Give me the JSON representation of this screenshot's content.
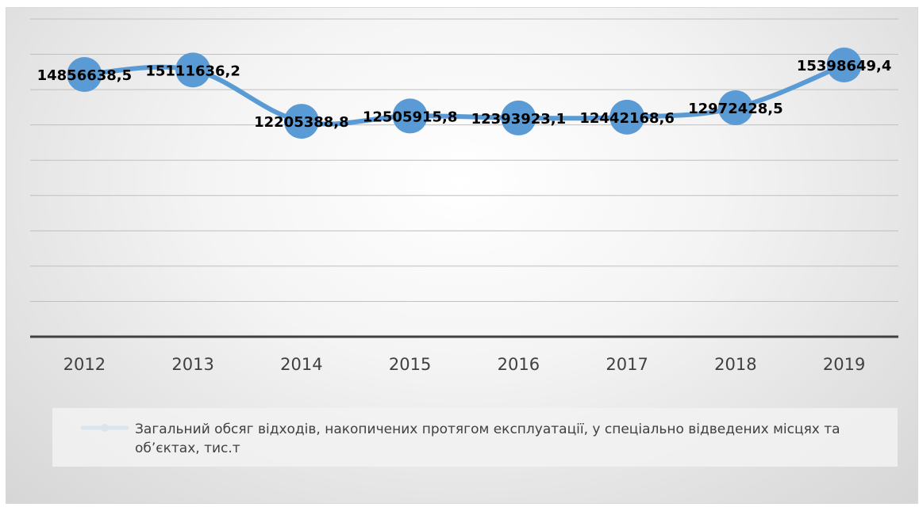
{
  "chart_data": {
    "type": "line",
    "categories": [
      "2012",
      "2013",
      "2014",
      "2015",
      "2016",
      "2017",
      "2018",
      "2019"
    ],
    "series": [
      {
        "name": "Загальний обсяг відходів, накопичених протягом експлуатації, у спеціально відведених місцях та об’єктах, тис.т",
        "values": [
          14856638.5,
          15111636.2,
          12205388.8,
          12505915.8,
          12393923.1,
          12442168.6,
          12972428.5,
          15398649.4
        ],
        "labels": [
          "14856638,5",
          "15111636,2",
          "12205388,8",
          "12505915,8",
          "12393923,1",
          "12442168,6",
          "12972428,5",
          "15398649,4"
        ],
        "color": "#5b9bd5"
      }
    ],
    "legend_position": "bottom",
    "grid": true,
    "ylim": [
      0,
      18000000
    ],
    "colors": {
      "line": "#5b9bd5",
      "grid": "#bfbfbf",
      "axis": "#404040"
    }
  }
}
